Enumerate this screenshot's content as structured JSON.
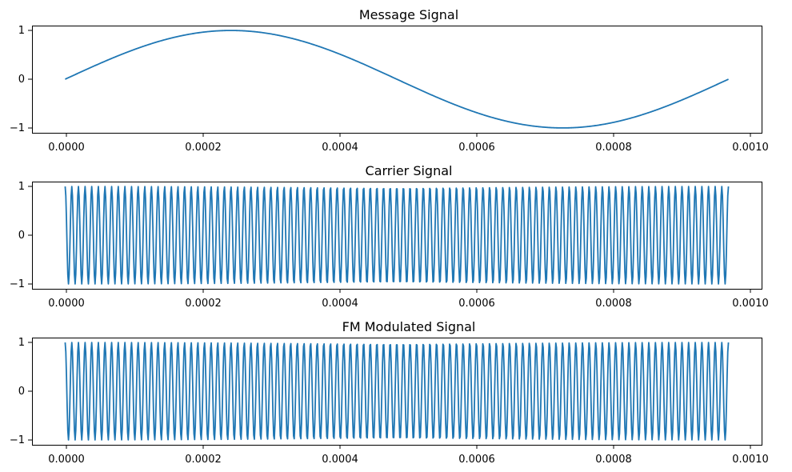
{
  "chart_data": [
    {
      "type": "line",
      "title": "Message Signal",
      "xlabel": "",
      "ylabel": "",
      "xlim": [
        -5e-05,
        0.00105
      ],
      "ylim": [
        -1.1,
        1.1
      ],
      "x_ticks": [
        0,
        0.0002,
        0.0004,
        0.0006,
        0.0008,
        0.001
      ],
      "x_tick_labels": [
        "0.0000",
        "0.0002",
        "0.0004",
        "0.0006",
        "0.0008",
        "0.0010"
      ],
      "y_ticks": [
        -1,
        0,
        1
      ],
      "y_tick_labels": [
        "−1",
        "0",
        "1"
      ],
      "grid": false,
      "series": [
        {
          "signal": "sin",
          "frequency_hz": 1000,
          "amplitude": 1,
          "x_start": 0,
          "x_end": 0.001,
          "samples": 1000,
          "color": "#1f77b4"
        }
      ]
    },
    {
      "type": "line",
      "title": "Carrier Signal",
      "xlabel": "",
      "ylabel": "",
      "xlim": [
        -5e-05,
        0.00105
      ],
      "ylim": [
        -1.1,
        1.1
      ],
      "x_ticks": [
        0,
        0.0002,
        0.0004,
        0.0006,
        0.0008,
        0.001
      ],
      "x_tick_labels": [
        "0.0000",
        "0.0002",
        "0.0004",
        "0.0006",
        "0.0008",
        "0.0010"
      ],
      "y_ticks": [
        -1,
        0,
        1
      ],
      "y_tick_labels": [
        "−1",
        "0",
        "1"
      ],
      "grid": false,
      "series": [
        {
          "signal": "cos",
          "frequency_hz": 100000,
          "amplitude": 1,
          "x_start": 0,
          "x_end": 0.001,
          "samples": 1000,
          "color": "#1f77b4"
        }
      ]
    },
    {
      "type": "line",
      "title": "FM Modulated Signal",
      "xlabel": "",
      "ylabel": "",
      "xlim": [
        -5e-05,
        0.00105
      ],
      "ylim": [
        -1.1,
        1.1
      ],
      "x_ticks": [
        0,
        0.0002,
        0.0004,
        0.0006,
        0.0008,
        0.001
      ],
      "x_tick_labels": [
        "0.0000",
        "0.0002",
        "0.0004",
        "0.0006",
        "0.0008",
        "0.0010"
      ],
      "y_ticks": [
        -1,
        0,
        1
      ],
      "y_tick_labels": [
        "−1",
        "0",
        "1"
      ],
      "grid": false,
      "series": [
        {
          "signal": "cos",
          "frequency_hz": 100000,
          "amplitude": 1,
          "x_start": 0,
          "x_end": 0.001,
          "samples": 1000,
          "color": "#1f77b4"
        }
      ]
    }
  ]
}
